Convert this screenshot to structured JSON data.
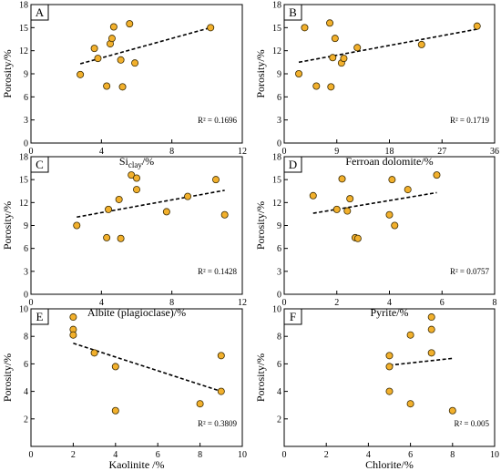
{
  "chart_data": [
    {
      "type": "scatter",
      "panel_label": "A",
      "xlabel_main": "Si",
      "xlabel_sub": "clay",
      "xlabel_suffix": "/%",
      "ylabel": "Porosity/%",
      "xlim": [
        0,
        12
      ],
      "ylim": [
        0,
        18
      ],
      "xticks": [
        0,
        4,
        8,
        12
      ],
      "yticks": [
        0,
        3,
        6,
        9,
        12,
        15,
        18
      ],
      "points": [
        [
          2.8,
          8.9
        ],
        [
          3.6,
          12.3
        ],
        [
          3.8,
          11.0
        ],
        [
          4.3,
          7.4
        ],
        [
          4.5,
          12.9
        ],
        [
          4.6,
          13.6
        ],
        [
          4.7,
          15.1
        ],
        [
          5.1,
          10.8
        ],
        [
          5.2,
          7.3
        ],
        [
          5.6,
          15.5
        ],
        [
          5.9,
          10.4
        ],
        [
          10.2,
          15.0
        ]
      ],
      "trendline": [
        [
          2.8,
          10.3
        ],
        [
          10.2,
          15.0
        ]
      ],
      "r2": "R² = 0.1696"
    },
    {
      "type": "scatter",
      "panel_label": "B",
      "xlabel": "Ferroan dolomite/%",
      "ylabel": "Porosity/%",
      "xlim": [
        0,
        36
      ],
      "ylim": [
        0,
        18
      ],
      "xticks": [
        0,
        9,
        18,
        27,
        36
      ],
      "yticks": [
        0,
        3,
        6,
        9,
        12,
        15,
        18
      ],
      "points": [
        [
          2.5,
          9.0
        ],
        [
          3.5,
          15.0
        ],
        [
          5.5,
          7.4
        ],
        [
          7.8,
          15.6
        ],
        [
          8.0,
          7.3
        ],
        [
          8.3,
          11.1
        ],
        [
          8.7,
          13.6
        ],
        [
          9.8,
          10.4
        ],
        [
          10.2,
          11.0
        ],
        [
          12.5,
          12.4
        ],
        [
          23.5,
          12.8
        ],
        [
          33.0,
          15.2
        ]
      ],
      "trendline": [
        [
          2.5,
          10.5
        ],
        [
          33.0,
          14.8
        ]
      ],
      "r2": "R² = 0.1719"
    },
    {
      "type": "scatter",
      "panel_label": "C",
      "xlabel": "Albite (plagioclase)/%",
      "ylabel": "Porosity/%",
      "xlim": [
        0,
        12
      ],
      "ylim": [
        0,
        18
      ],
      "xticks": [
        0,
        4,
        8,
        12
      ],
      "yticks": [
        0,
        3,
        6,
        9,
        12,
        15,
        18
      ],
      "points": [
        [
          2.6,
          9.0
        ],
        [
          4.3,
          7.4
        ],
        [
          4.4,
          11.1
        ],
        [
          5.0,
          12.4
        ],
        [
          5.1,
          7.3
        ],
        [
          5.7,
          15.6
        ],
        [
          6.0,
          13.7
        ],
        [
          6.0,
          15.2
        ],
        [
          7.7,
          10.8
        ],
        [
          8.9,
          12.8
        ],
        [
          10.5,
          15.0
        ],
        [
          11.0,
          10.4
        ]
      ],
      "trendline": [
        [
          2.6,
          10.1
        ],
        [
          11.0,
          13.6
        ]
      ],
      "r2": "R² = 0.1428"
    },
    {
      "type": "scatter",
      "panel_label": "D",
      "xlabel": "Pyrite/%",
      "ylabel": "Porosity/%",
      "xlim": [
        0,
        8
      ],
      "ylim": [
        0,
        18
      ],
      "xticks": [
        0,
        2,
        4,
        6,
        8
      ],
      "yticks": [
        0,
        3,
        6,
        9,
        12,
        15,
        18
      ],
      "points": [
        [
          1.1,
          12.9
        ],
        [
          2.0,
          11.1
        ],
        [
          2.2,
          15.1
        ],
        [
          2.4,
          10.9
        ],
        [
          2.5,
          12.5
        ],
        [
          2.7,
          7.4
        ],
        [
          2.8,
          7.3
        ],
        [
          4.0,
          10.4
        ],
        [
          4.1,
          15.0
        ],
        [
          4.2,
          9.0
        ],
        [
          4.7,
          13.7
        ],
        [
          5.8,
          15.6
        ]
      ],
      "trendline": [
        [
          1.1,
          10.6
        ],
        [
          5.8,
          13.3
        ]
      ],
      "r2": "R² = 0.0757"
    },
    {
      "type": "scatter",
      "panel_label": "E",
      "xlabel": "Kaolinite /%",
      "ylabel": "Porosity/%",
      "xlim": [
        0,
        10
      ],
      "ylim": [
        0,
        10
      ],
      "xticks": [
        0,
        2,
        4,
        6,
        8,
        10
      ],
      "yticks": [
        2,
        4,
        6,
        8,
        10
      ],
      "points": [
        [
          2.0,
          9.4
        ],
        [
          2.0,
          8.5
        ],
        [
          2.0,
          8.1
        ],
        [
          3.0,
          6.8
        ],
        [
          4.0,
          5.8
        ],
        [
          4.0,
          2.6
        ],
        [
          8.0,
          3.1
        ],
        [
          9.0,
          6.6
        ],
        [
          9.0,
          4.0
        ]
      ],
      "trendline": [
        [
          2.0,
          7.5
        ],
        [
          9.0,
          4.0
        ]
      ],
      "r2": "R² = 0.3809"
    },
    {
      "type": "scatter",
      "panel_label": "F",
      "xlabel": "Chlorite/%",
      "ylabel": "Porosity/%",
      "xlim": [
        0,
        10
      ],
      "ylim": [
        0,
        10
      ],
      "xticks": [
        0,
        2,
        4,
        6,
        8,
        10
      ],
      "yticks": [
        2,
        4,
        6,
        8,
        10
      ],
      "points": [
        [
          5.0,
          6.6
        ],
        [
          5.0,
          5.8
        ],
        [
          5.0,
          4.0
        ],
        [
          6.0,
          8.1
        ],
        [
          6.0,
          3.1
        ],
        [
          7.0,
          9.4
        ],
        [
          7.0,
          8.5
        ],
        [
          7.0,
          6.8
        ],
        [
          8.0,
          2.6
        ]
      ],
      "trendline": [
        [
          5.0,
          5.9
        ],
        [
          8.0,
          6.4
        ]
      ],
      "r2": "R² = 0.005"
    }
  ],
  "colors": {
    "marker_fill": "#f2b02c",
    "marker_stroke": "#3a2a00",
    "axis": "#000000",
    "trendline": "#000000"
  }
}
